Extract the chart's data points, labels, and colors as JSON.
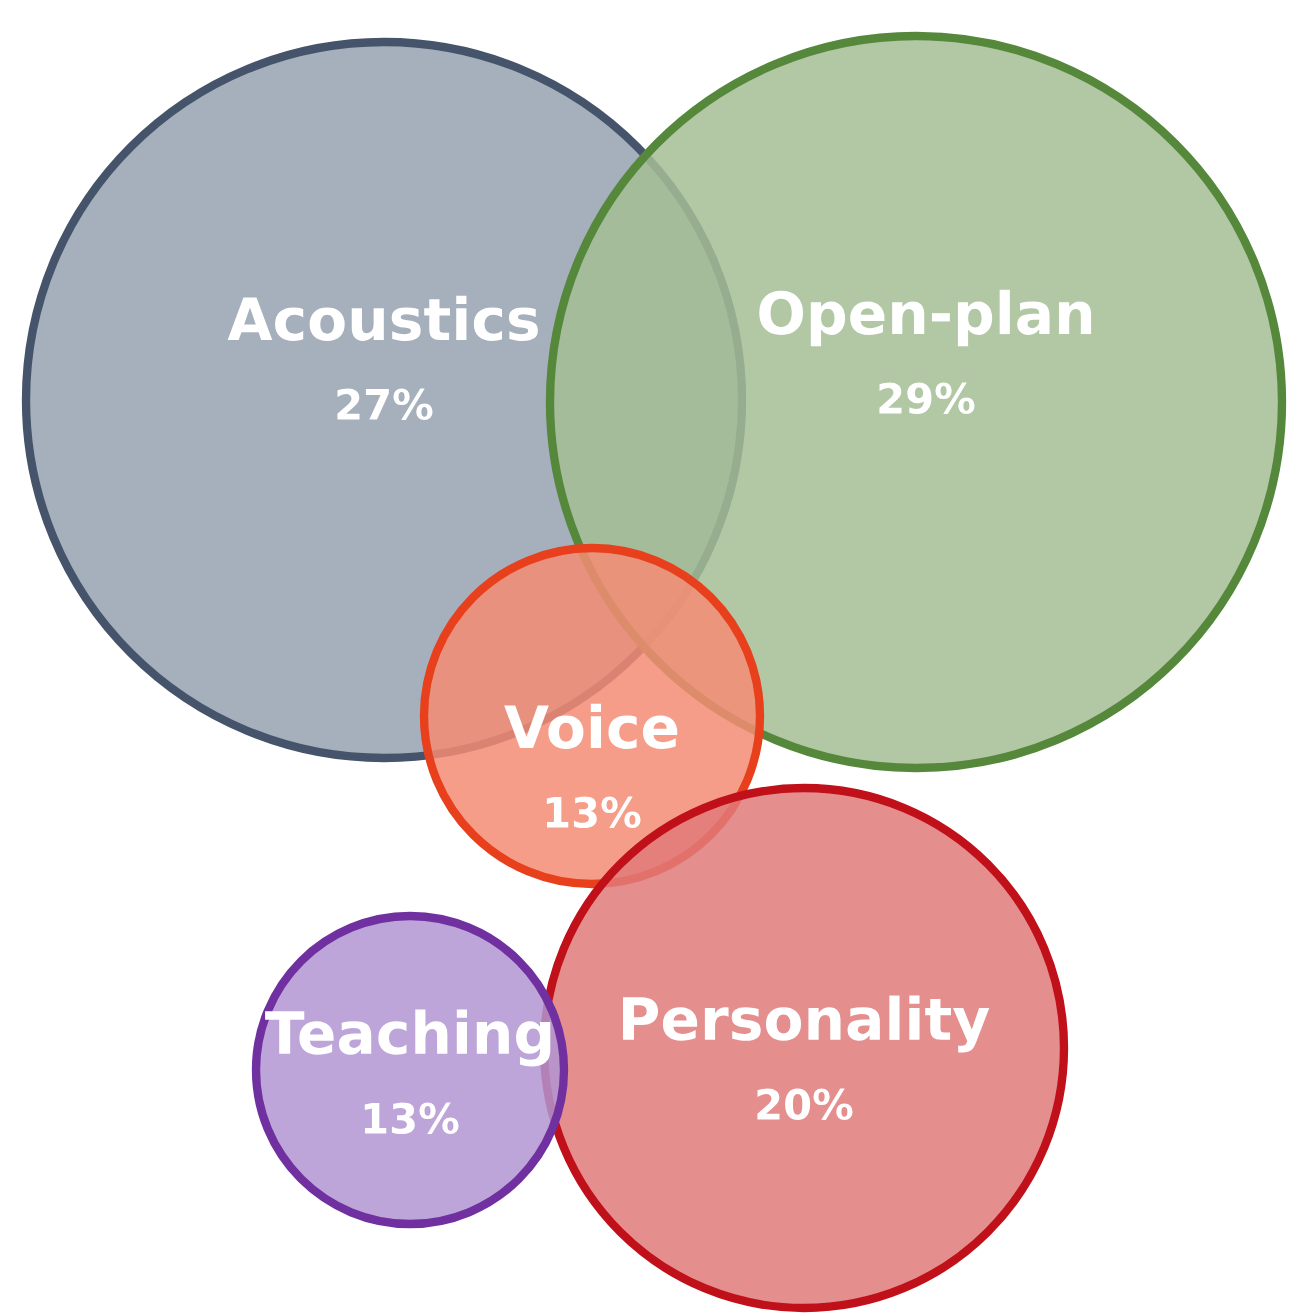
{
  "chart_data": {
    "type": "other",
    "categories": [
      "Acoustics",
      "Open-plan",
      "Voice",
      "Personality",
      "Teaching"
    ],
    "values": [
      27,
      29,
      13,
      20,
      13
    ],
    "value_labels": [
      "27%",
      "29%",
      "13%",
      "20%",
      "13%"
    ],
    "colors": [
      "#97a2b0",
      "#a5be95",
      "#f58c74",
      "#e07a7a",
      "#b295d2"
    ]
  }
}
